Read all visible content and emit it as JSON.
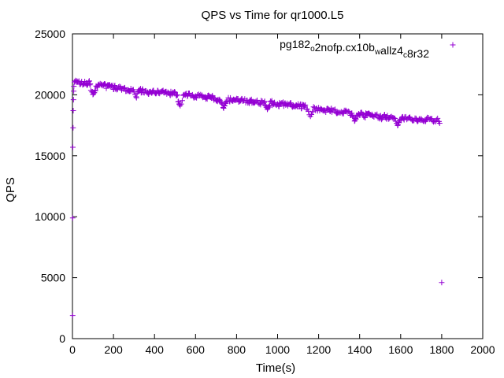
{
  "chart_data": {
    "type": "scatter",
    "title": "QPS vs Time for qr1000.L5",
    "xlabel": "Time(s)",
    "ylabel": "QPS",
    "xlim": [
      0,
      2000
    ],
    "ylim": [
      0,
      25000
    ],
    "xticks": [
      0,
      200,
      400,
      600,
      800,
      1000,
      1200,
      1400,
      1600,
      1800,
      2000
    ],
    "yticks": [
      0,
      5000,
      10000,
      15000,
      20000,
      25000
    ],
    "grid": false,
    "legend_position": "top-right",
    "series": [
      {
        "name": "pg182_o2nofp.cx10b_wallz4_c8r32",
        "legend_parts": [
          {
            "text": "pg182",
            "sub": false
          },
          {
            "text": "o",
            "sub": true
          },
          {
            "text": "2nofp.cx10b",
            "sub": false
          },
          {
            "text": "w",
            "sub": true
          },
          {
            "text": "allz4",
            "sub": false
          },
          {
            "text": "c",
            "sub": true
          },
          {
            "text": "8r32",
            "sub": false
          }
        ],
        "color": "#9400d3",
        "marker": "plus",
        "startup_points": [
          [
            1,
            1900
          ],
          [
            1,
            9900
          ],
          [
            2,
            15700
          ],
          [
            3,
            17300
          ],
          [
            4,
            18700
          ],
          [
            5,
            19600
          ],
          [
            6,
            20300
          ],
          [
            7,
            20700
          ],
          [
            1800,
            4600
          ]
        ],
        "trend": [
          [
            10,
            21000
          ],
          [
            100,
            20900
          ],
          [
            300,
            20300
          ],
          [
            500,
            20100
          ],
          [
            700,
            19700
          ],
          [
            900,
            19400
          ],
          [
            1100,
            19100
          ],
          [
            1200,
            18800
          ],
          [
            1400,
            18400
          ],
          [
            1600,
            18100
          ],
          [
            1790,
            17900
          ]
        ],
        "interval_s": 5,
        "spread": 350,
        "dips": [
          [
            100,
            20000
          ],
          [
            310,
            19900
          ],
          [
            525,
            19100
          ],
          [
            735,
            19000
          ],
          [
            950,
            18800
          ],
          [
            1160,
            18200
          ],
          [
            1375,
            17900
          ],
          [
            1585,
            17500
          ],
          [
            1795,
            17400
          ]
        ]
      }
    ]
  }
}
